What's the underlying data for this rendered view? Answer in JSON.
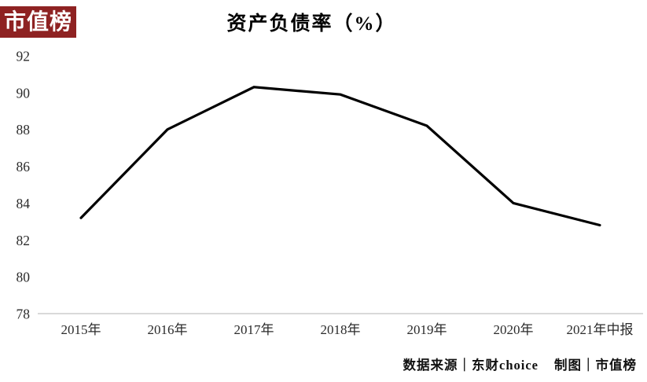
{
  "badge": {
    "label": "市值榜",
    "bg_color": "#8e2222",
    "text_color": "#ffffff"
  },
  "chart_data": {
    "type": "line",
    "title": "资产负债率（%）",
    "categories": [
      "2015年",
      "2016年",
      "2017年",
      "2018年",
      "2019年",
      "2020年",
      "2021年中报"
    ],
    "series": [
      {
        "name": "资产负债率",
        "values": [
          83.2,
          88.0,
          90.3,
          89.9,
          88.2,
          84.0,
          82.8
        ]
      }
    ],
    "xlabel": "",
    "ylabel": "",
    "ylim": [
      78,
      92
    ],
    "yticks": [
      92,
      90,
      88,
      86,
      84,
      82,
      80,
      78
    ],
    "grid": false,
    "legend": "none",
    "line_color": "#000000",
    "line_width": 3.2,
    "axis_line_color": "#d9d9d9",
    "tick_label_color": "#2b2b2b"
  },
  "footer": {
    "source_label": "数据来源",
    "source_value": "东财choice",
    "credit_label": "制图",
    "credit_value": "市值榜",
    "separator": "｜"
  }
}
